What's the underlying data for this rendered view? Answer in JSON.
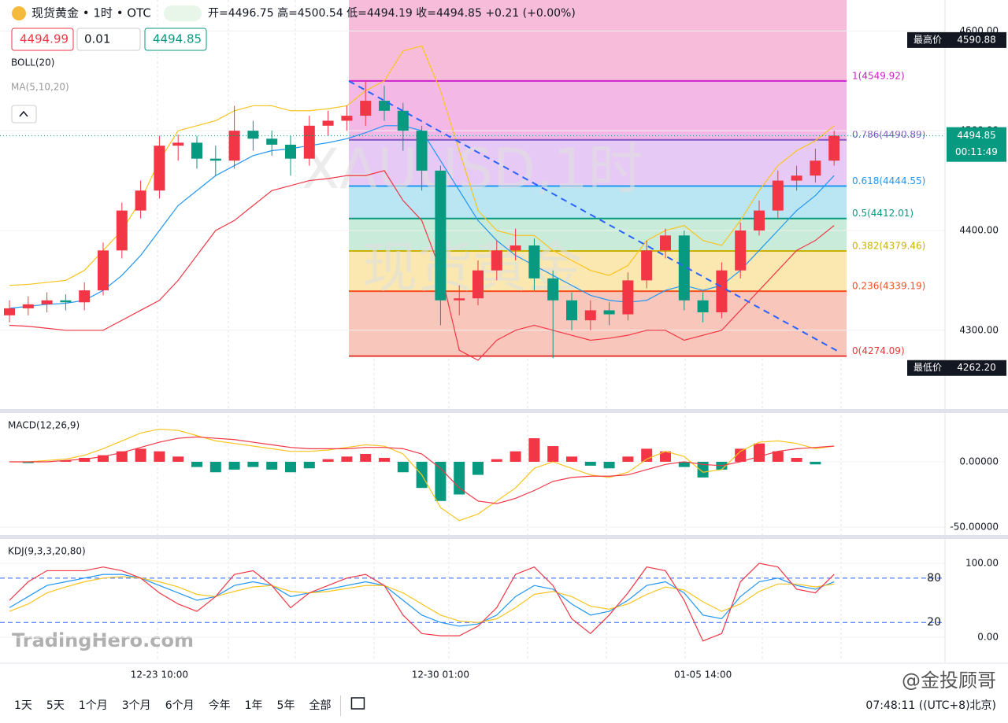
{
  "header": {
    "title": "现货黄金 • 1时 • OTC",
    "ohlc": [
      "开=4496.75",
      "高=4500.54",
      "低=4494.19",
      "收=4494.85",
      "+0.21 (+0.00%)"
    ],
    "inputs": [
      "4494.99",
      "0.01",
      "4494.85"
    ],
    "indicators": [
      "BOLL(20)",
      "MA(5,10,20)"
    ]
  },
  "watermarks": [
    "XAUUSD,1时",
    "现货黄金",
    "TradingHero.com",
    "@金投顾哥"
  ],
  "toolbar": {
    "ranges": [
      "1天",
      "5天",
      "1个月",
      "3个月",
      "6个月",
      "今年",
      "1年",
      "5年",
      "全部"
    ],
    "clock": "07:48:11 ((UTC+8)北京)"
  },
  "chart_data": [
    {
      "type": "candlestick",
      "up_color": "#f23645",
      "down_color": "#089981",
      "categories": [
        null,
        null,
        null,
        null,
        null,
        null,
        null,
        null,
        "12-23 10:00",
        null,
        null,
        null,
        null,
        null,
        null,
        null,
        null,
        null,
        null,
        null,
        null,
        null,
        null,
        "12-30 01:00",
        null,
        null,
        null,
        null,
        null,
        null,
        null,
        null,
        null,
        null,
        null,
        null,
        null,
        "01-05 14:00",
        null,
        null,
        null,
        null,
        null,
        null,
        null
      ],
      "open": [
        4315,
        4322,
        4326,
        4330,
        4328,
        4340,
        4380,
        4420,
        4440,
        4485,
        4488,
        4472,
        4470,
        4500,
        4492,
        4486,
        4472,
        4505,
        4510,
        4515,
        4530,
        4520,
        4500,
        4460,
        4330,
        4332,
        4360,
        4380,
        4385,
        4352,
        4330,
        4310,
        4320,
        4316,
        4350,
        4380,
        4395,
        4330,
        4318,
        4360,
        4400,
        4420,
        4450,
        4455,
        4470
      ],
      "high": [
        4330,
        4334,
        4338,
        4336,
        4348,
        4388,
        4428,
        4450,
        4495,
        4496,
        4495,
        4485,
        4525,
        4510,
        4500,
        4495,
        4515,
        4520,
        4525,
        4550,
        4545,
        4528,
        4505,
        4465,
        4345,
        4370,
        4390,
        4402,
        4392,
        4360,
        4338,
        4330,
        4328,
        4358,
        4390,
        4402,
        4400,
        4338,
        4368,
        4408,
        4430,
        4460,
        4465,
        4482,
        4500
      ],
      "low": [
        4308,
        4315,
        4318,
        4320,
        4320,
        4335,
        4372,
        4412,
        4432,
        4470,
        4462,
        4455,
        4462,
        4480,
        4475,
        4455,
        4465,
        4495,
        4500,
        4505,
        4510,
        4480,
        4440,
        4305,
        4315,
        4325,
        4350,
        4370,
        4340,
        4272,
        4300,
        4300,
        4305,
        4310,
        4342,
        4372,
        4320,
        4308,
        4312,
        4352,
        4395,
        4412,
        4440,
        4448,
        4465
      ],
      "close": [
        4322,
        4326,
        4330,
        4328,
        4340,
        4380,
        4420,
        4440,
        4485,
        4488,
        4472,
        4470,
        4500,
        4492,
        4486,
        4472,
        4505,
        4510,
        4515,
        4530,
        4520,
        4500,
        4460,
        4330,
        4332,
        4360,
        4380,
        4385,
        4352,
        4330,
        4310,
        4320,
        4316,
        4350,
        4380,
        4395,
        4330,
        4318,
        4360,
        4400,
        4420,
        4450,
        4455,
        4470,
        4495
      ],
      "overlays": [
        {
          "color": "#f9c41f",
          "values": [
            4345,
            4346,
            4348,
            4350,
            4360,
            4380,
            4400,
            4430,
            4470,
            4500,
            4505,
            4510,
            4520,
            4525,
            4525,
            4520,
            4520,
            4522,
            4525,
            4540,
            4550,
            4580,
            4585,
            4540,
            4480,
            4420,
            4400,
            4395,
            4395,
            4380,
            4370,
            4360,
            4355,
            4365,
            4390,
            4400,
            4405,
            4390,
            4385,
            4410,
            4440,
            4465,
            4480,
            4490,
            4505
          ]
        },
        {
          "color": "#2196f3",
          "values": [
            4322,
            4324,
            4326,
            4327,
            4330,
            4340,
            4355,
            4375,
            4400,
            4425,
            4440,
            4455,
            4465,
            4475,
            4480,
            4482,
            4485,
            4488,
            4492,
            4498,
            4505,
            4505,
            4500,
            4470,
            4440,
            4410,
            4390,
            4375,
            4365,
            4355,
            4345,
            4335,
            4330,
            4328,
            4330,
            4340,
            4345,
            4340,
            4345,
            4360,
            4380,
            4400,
            4420,
            4435,
            4455
          ]
        },
        {
          "color": "#f23645",
          "values": [
            4305,
            4304,
            4302,
            4300,
            4300,
            4300,
            4310,
            4320,
            4330,
            4350,
            4375,
            4400,
            4410,
            4425,
            4440,
            4445,
            4450,
            4452,
            4455,
            4455,
            4460,
            4430,
            4410,
            4360,
            4280,
            4270,
            4290,
            4300,
            4305,
            4300,
            4295,
            4290,
            4292,
            4295,
            4300,
            4300,
            4290,
            4295,
            4300,
            4320,
            4340,
            4360,
            4380,
            4390,
            4405
          ]
        }
      ],
      "fib_levels": [
        {
          "value": 4549.92,
          "label": "1(4549.92)",
          "color": "#cc22cc"
        },
        {
          "value": 4490.89,
          "label": "0.786(4490.89)",
          "color": "#7e57c2"
        },
        {
          "value": 4444.55,
          "label": "0.618(4444.55)",
          "color": "#2196f3"
        },
        {
          "value": 4412.01,
          "label": "0.5(4412.01)",
          "color": "#089981"
        },
        {
          "value": 4379.46,
          "label": "0.382(4379.46)",
          "color": "#c9b200"
        },
        {
          "value": 4339.19,
          "label": "0.236(4339.19)",
          "color": "#f4511e"
        },
        {
          "value": 4274.09,
          "label": "0(4274.09)",
          "color": "#e53935"
        }
      ],
      "fib_fills": [
        "#f3b8e6",
        "#e7c9f6",
        "#b9e6f2",
        "#c9ebd9",
        "#fbe8b0",
        "#f9c6bb"
      ],
      "price_marks": [
        {
          "name": "最高价",
          "value": 4590.88,
          "label": "4590.88"
        },
        {
          "name": "最低价",
          "value": 4262.2,
          "label": "4262.20"
        }
      ],
      "current_price": 4494.85,
      "countdown": "00:11:49",
      "ylim": [
        4221,
        4631
      ],
      "yticks": [
        {
          "value": 4300,
          "label": "4300.00"
        },
        {
          "value": 4400,
          "label": "4400.00"
        },
        {
          "value": 4500,
          "label": "4500.00"
        },
        {
          "value": 4600,
          "label": "4600.00"
        }
      ]
    },
    {
      "type": "macd",
      "title": "MACD(12,26,9)",
      "up_color": "#f23645",
      "down_color": "#089981",
      "histogram": [
        0,
        -1,
        0,
        1,
        3,
        5,
        8,
        10,
        8,
        4,
        -4,
        -8,
        -6,
        -4,
        -6,
        -8,
        -5,
        2,
        4,
        6,
        3,
        -8,
        -20,
        -30,
        -25,
        -10,
        2,
        8,
        18,
        12,
        4,
        -3,
        -5,
        4,
        10,
        8,
        -4,
        -12,
        -6,
        10,
        14,
        8,
        3,
        -2,
        0
      ],
      "series": [
        {
          "color": "#f9c41f",
          "values": [
            0,
            0,
            1,
            2,
            5,
            10,
            16,
            22,
            25,
            24,
            20,
            16,
            14,
            12,
            10,
            8,
            8,
            9,
            11,
            13,
            12,
            6,
            -10,
            -35,
            -45,
            -40,
            -30,
            -20,
            -5,
            0,
            -5,
            -10,
            -12,
            -8,
            2,
            8,
            4,
            -8,
            -6,
            8,
            15,
            16,
            14,
            10,
            12
          ]
        },
        {
          "color": "#f23645",
          "values": [
            0,
            0,
            0,
            1,
            2,
            4,
            7,
            11,
            15,
            18,
            19,
            18,
            17,
            15,
            13,
            11,
            10,
            10,
            10,
            11,
            11,
            10,
            6,
            -5,
            -20,
            -30,
            -32,
            -28,
            -22,
            -15,
            -12,
            -11,
            -11,
            -10,
            -6,
            -2,
            0,
            -2,
            -3,
            0,
            4,
            8,
            10,
            11,
            12
          ]
        }
      ],
      "ylim": [
        -56,
        37.3
      ],
      "yticks": [
        {
          "value": 0,
          "label": "0.00000"
        },
        {
          "value": -50,
          "label": "-50.00000"
        }
      ]
    },
    {
      "type": "kdj",
      "title": "KDJ(9,3,3,20,80)",
      "series": [
        {
          "color": "#2196f3",
          "values": [
            40,
            55,
            70,
            75,
            80,
            85,
            85,
            80,
            70,
            60,
            50,
            55,
            70,
            75,
            70,
            55,
            60,
            65,
            70,
            75,
            70,
            50,
            30,
            20,
            15,
            18,
            30,
            55,
            70,
            65,
            45,
            30,
            35,
            50,
            70,
            75,
            60,
            30,
            25,
            55,
            75,
            80,
            70,
            65,
            75
          ]
        },
        {
          "color": "#f9c41f",
          "values": [
            35,
            45,
            60,
            68,
            75,
            80,
            82,
            80,
            75,
            68,
            58,
            55,
            62,
            68,
            70,
            62,
            60,
            62,
            66,
            70,
            70,
            60,
            45,
            30,
            22,
            20,
            25,
            40,
            58,
            62,
            55,
            42,
            38,
            45,
            58,
            68,
            64,
            48,
            35,
            45,
            62,
            72,
            72,
            68,
            72
          ]
        },
        {
          "color": "#f23645",
          "values": [
            50,
            75,
            90,
            90,
            90,
            95,
            90,
            80,
            60,
            45,
            35,
            55,
            85,
            90,
            70,
            40,
            60,
            70,
            80,
            85,
            70,
            30,
            5,
            2,
            2,
            15,
            40,
            85,
            95,
            70,
            25,
            5,
            30,
            60,
            95,
            90,
            50,
            -5,
            5,
            75,
            100,
            95,
            65,
            60,
            85
          ]
        }
      ],
      "ref_lines": [
        {
          "value": 80,
          "label": "80"
        },
        {
          "value": 20,
          "label": "20"
        }
      ],
      "ylim": [
        -31.9,
        129.8
      ],
      "yticks": [
        {
          "value": 100,
          "label": "100.00"
        },
        {
          "value": 0,
          "label": "0.00"
        }
      ]
    }
  ]
}
